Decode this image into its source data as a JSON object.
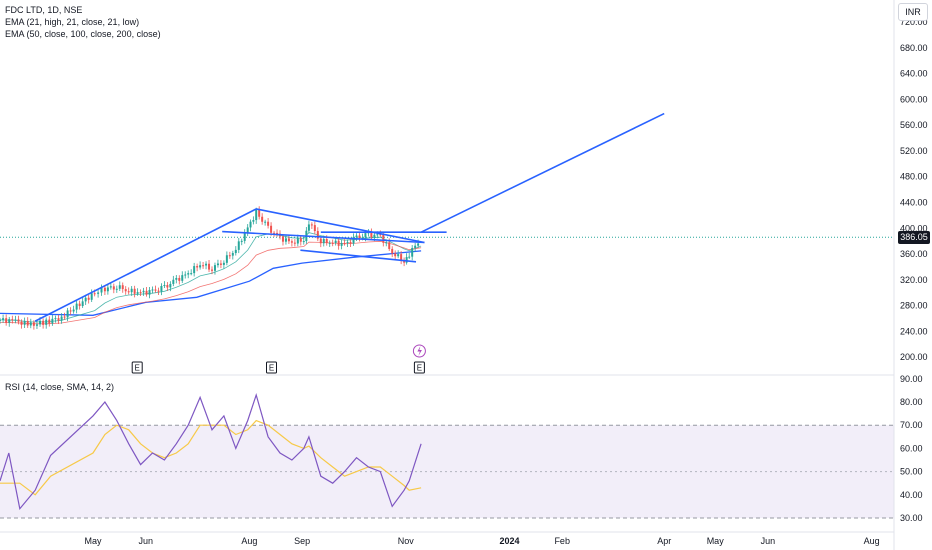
{
  "header": {
    "title": "FDC LTD, 1D, NSE",
    "ema1": "EMA (21, high, 21, close, 21, low)",
    "ema2": "EMA (50, close, 100, close, 200, close)",
    "currency": "INR"
  },
  "rsi_panel": {
    "title": "RSI (14, close, SMA, 14, 2)"
  },
  "last_price": "386.05",
  "events": [
    {
      "label": "E",
      "x": "2023-05-27"
    },
    {
      "label": "E",
      "x": "2023-08-14"
    },
    {
      "label": "E",
      "x": "2023-11-09"
    }
  ],
  "colors": {
    "trendline": "#2962ff",
    "candle_up": "#26a69a",
    "candle_down": "#ef5350",
    "ema_long": "#2962ff",
    "rsi_line": "#7e57c2",
    "rsi_ma": "#f7c948",
    "rsi_band": "#ede7f6"
  },
  "chart_data": [
    {
      "type": "candlestick",
      "y_scale": "linear",
      "ylim": [
        180,
        730
      ],
      "y_ticks": [
        "720.00",
        "680.00",
        "640.00",
        "600.00",
        "560.00",
        "520.00",
        "480.00",
        "440.00",
        "400.00",
        "360.00",
        "320.00",
        "280.00",
        "240.00",
        "200.00"
      ],
      "x_ticks": [
        {
          "label": "May",
          "date": "2023-05-01",
          "bold": false
        },
        {
          "label": "Jun",
          "date": "2023-06-01",
          "bold": false
        },
        {
          "label": "Aug",
          "date": "2023-08-01",
          "bold": false
        },
        {
          "label": "Sep",
          "date": "2023-09-01",
          "bold": false
        },
        {
          "label": "Nov",
          "date": "2023-11-01",
          "bold": false
        },
        {
          "label": "2024",
          "date": "2024-01-01",
          "bold": true
        },
        {
          "label": "Feb",
          "date": "2024-02-01",
          "bold": false
        },
        {
          "label": "Apr",
          "date": "2024-04-01",
          "bold": false
        },
        {
          "label": "May",
          "date": "2024-05-01",
          "bold": false
        },
        {
          "label": "Jun",
          "date": "2024-06-01",
          "bold": false
        },
        {
          "label": "Aug",
          "date": "2024-08-01",
          "bold": false
        }
      ],
      "close_series": [
        [
          "2023-04-01",
          258
        ],
        [
          "2023-04-08",
          256
        ],
        [
          "2023-04-15",
          250
        ],
        [
          "2023-04-22",
          255
        ],
        [
          "2023-04-29",
          262
        ],
        [
          "2023-05-02",
          300
        ],
        [
          "2023-05-08",
          306
        ],
        [
          "2023-05-15",
          310
        ],
        [
          "2023-05-22",
          303
        ],
        [
          "2023-05-29",
          300
        ],
        [
          "2023-06-05",
          302
        ],
        [
          "2023-06-12",
          308
        ],
        [
          "2023-06-19",
          320
        ],
        [
          "2023-06-26",
          330
        ],
        [
          "2023-07-03",
          345
        ],
        [
          "2023-07-10",
          338
        ],
        [
          "2023-07-17",
          350
        ],
        [
          "2023-07-24",
          368
        ],
        [
          "2023-07-31",
          400
        ],
        [
          "2023-08-05",
          425
        ],
        [
          "2023-08-12",
          400
        ],
        [
          "2023-08-19",
          385
        ],
        [
          "2023-08-26",
          378
        ],
        [
          "2023-09-02",
          383
        ],
        [
          "2023-09-05",
          410
        ],
        [
          "2023-09-12",
          380
        ],
        [
          "2023-09-19",
          378
        ],
        [
          "2023-09-26",
          375
        ],
        [
          "2023-10-03",
          385
        ],
        [
          "2023-10-10",
          390
        ],
        [
          "2023-10-17",
          388
        ],
        [
          "2023-10-24",
          362
        ],
        [
          "2023-10-31",
          350
        ],
        [
          "2023-11-03",
          360
        ],
        [
          "2023-11-10",
          386
        ]
      ],
      "ema_long": [
        [
          "2023-04-01",
          268
        ],
        [
          "2023-05-01",
          265
        ],
        [
          "2023-06-01",
          285
        ],
        [
          "2023-07-01",
          293
        ],
        [
          "2023-08-01",
          318
        ],
        [
          "2023-08-15",
          338
        ],
        [
          "2023-09-01",
          346
        ],
        [
          "2023-10-01",
          355
        ],
        [
          "2023-11-10",
          365
        ]
      ],
      "trendlines": [
        {
          "from": [
            "2023-04-17",
            256
          ],
          "to": [
            "2023-08-05",
            430
          ]
        },
        {
          "from": [
            "2023-07-16",
            395
          ],
          "to": [
            "2023-11-12",
            378
          ]
        },
        {
          "from": [
            "2023-08-31",
            366
          ],
          "to": [
            "2023-11-07",
            348
          ]
        },
        {
          "from": [
            "2023-08-05",
            430
          ],
          "to": [
            "2023-11-12",
            378
          ]
        },
        {
          "from": [
            "2023-09-12",
            394
          ],
          "to": [
            "2023-11-25",
            394
          ]
        },
        {
          "from": [
            "2023-11-10",
            394
          ],
          "to": [
            "2024-04-01",
            578
          ]
        }
      ]
    },
    {
      "type": "line",
      "title": "RSI (14, close, SMA, 14, 2)",
      "ylim": [
        28,
        92
      ],
      "y_ticks": [
        "90.00",
        "80.00",
        "70.00",
        "60.00",
        "50.00",
        "40.00",
        "30.00"
      ],
      "band": [
        30,
        70
      ],
      "mid": 50,
      "series": [
        {
          "values": [
            [
              "2023-04-01",
              46
            ],
            [
              "2023-04-05",
              58
            ],
            [
              "2023-04-10",
              34
            ],
            [
              "2023-04-17",
              42
            ],
            [
              "2023-04-24",
              57
            ],
            [
              "2023-05-01",
              74
            ],
            [
              "2023-05-08",
              80
            ],
            [
              "2023-05-15",
              72
            ],
            [
              "2023-05-22",
              62
            ],
            [
              "2023-05-29",
              53
            ],
            [
              "2023-06-05",
              58
            ],
            [
              "2023-06-12",
              55
            ],
            [
              "2023-06-19",
              62
            ],
            [
              "2023-06-26",
              70
            ],
            [
              "2023-07-03",
              82
            ],
            [
              "2023-07-10",
              68
            ],
            [
              "2023-07-17",
              74
            ],
            [
              "2023-07-24",
              60
            ],
            [
              "2023-07-31",
              72
            ],
            [
              "2023-08-05",
              83
            ],
            [
              "2023-08-12",
              65
            ],
            [
              "2023-08-19",
              58
            ],
            [
              "2023-08-26",
              55
            ],
            [
              "2023-09-02",
              60
            ],
            [
              "2023-09-05",
              65
            ],
            [
              "2023-09-12",
              48
            ],
            [
              "2023-09-19",
              45
            ],
            [
              "2023-09-26",
              50
            ],
            [
              "2023-10-03",
              56
            ],
            [
              "2023-10-10",
              52
            ],
            [
              "2023-10-17",
              50
            ],
            [
              "2023-10-24",
              35
            ],
            [
              "2023-10-31",
              42
            ],
            [
              "2023-11-03",
              46
            ],
            [
              "2023-11-10",
              62
            ]
          ]
        },
        {
          "values": [
            [
              "2023-04-01",
              45
            ],
            [
              "2023-04-10",
              45
            ],
            [
              "2023-04-17",
              40
            ],
            [
              "2023-04-24",
              48
            ],
            [
              "2023-05-01",
              58
            ],
            [
              "2023-05-08",
              66
            ],
            [
              "2023-05-15",
              70
            ],
            [
              "2023-05-22",
              68
            ],
            [
              "2023-05-29",
              62
            ],
            [
              "2023-06-05",
              58
            ],
            [
              "2023-06-12",
              56
            ],
            [
              "2023-06-19",
              58
            ],
            [
              "2023-06-26",
              62
            ],
            [
              "2023-07-03",
              70
            ],
            [
              "2023-07-10",
              70
            ],
            [
              "2023-07-17",
              70
            ],
            [
              "2023-07-24",
              66
            ],
            [
              "2023-07-31",
              68
            ],
            [
              "2023-08-05",
              72
            ],
            [
              "2023-08-12",
              70
            ],
            [
              "2023-08-19",
              66
            ],
            [
              "2023-08-26",
              62
            ],
            [
              "2023-09-02",
              60
            ],
            [
              "2023-09-05",
              61
            ],
            [
              "2023-09-12",
              56
            ],
            [
              "2023-09-19",
              52
            ],
            [
              "2023-09-26",
              48
            ],
            [
              "2023-10-03",
              50
            ],
            [
              "2023-10-10",
              52
            ],
            [
              "2023-10-17",
              52
            ],
            [
              "2023-10-24",
              48
            ],
            [
              "2023-10-31",
              44
            ],
            [
              "2023-11-03",
              42
            ],
            [
              "2023-11-10",
              43
            ]
          ]
        }
      ]
    }
  ]
}
